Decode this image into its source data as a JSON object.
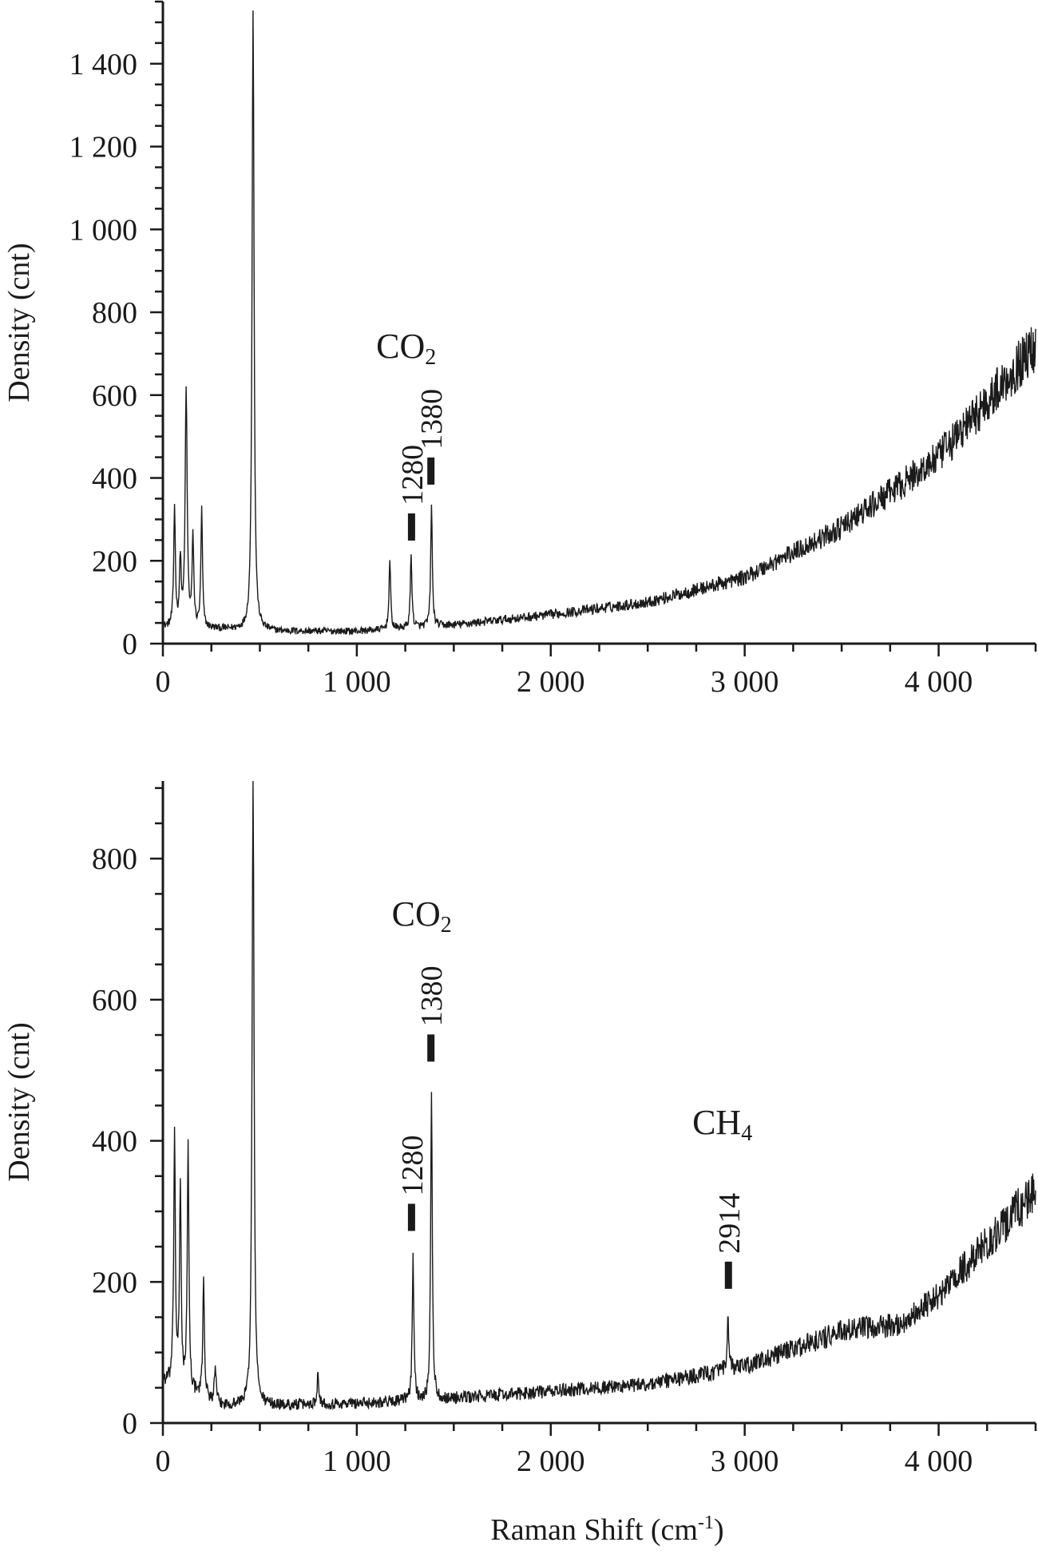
{
  "chart_data": [
    {
      "type": "line",
      "ylabel": "Density (cnt)",
      "xlim": [
        0,
        4500
      ],
      "ylim": [
        0,
        1550
      ],
      "x_ticks": [
        {
          "value": 0,
          "label": "0"
        },
        {
          "value": 1000,
          "label": "1 000"
        },
        {
          "value": 2000,
          "label": "2 000"
        },
        {
          "value": 3000,
          "label": "3 000"
        },
        {
          "value": 4000,
          "label": "4 000"
        }
      ],
      "y_ticks": [
        {
          "value": 0,
          "label": "0"
        },
        {
          "value": 200,
          "label": "200"
        },
        {
          "value": 400,
          "label": "400"
        },
        {
          "value": 600,
          "label": "600"
        },
        {
          "value": 800,
          "label": "800"
        },
        {
          "value": 1000,
          "label": "1 000"
        },
        {
          "value": 1200,
          "label": "1 200"
        },
        {
          "value": 1400,
          "label": "1 400"
        }
      ],
      "annotations": [
        {
          "text": "CO",
          "sub": "2",
          "x": 1100,
          "y": 690
        },
        {
          "text": "1280",
          "x": 1280,
          "y": 245
        },
        {
          "text": "1380",
          "x": 1380,
          "y": 380
        }
      ],
      "peaks": [
        {
          "x": 60,
          "y": 330
        },
        {
          "x": 90,
          "y": 200
        },
        {
          "x": 120,
          "y": 610
        },
        {
          "x": 155,
          "y": 250
        },
        {
          "x": 200,
          "y": 320
        },
        {
          "x": 465,
          "y": 1530
        },
        {
          "x": 1170,
          "y": 200
        },
        {
          "x": 1280,
          "y": 215
        },
        {
          "x": 1385,
          "y": 335
        }
      ],
      "baseline": [
        [
          0,
          40
        ],
        [
          300,
          35
        ],
        [
          600,
          30
        ],
        [
          1000,
          30
        ],
        [
          1500,
          45
        ],
        [
          2000,
          70
        ],
        [
          2500,
          100
        ],
        [
          3000,
          160
        ],
        [
          3500,
          280
        ],
        [
          4000,
          450
        ],
        [
          4500,
          720
        ]
      ]
    },
    {
      "type": "line",
      "xlabel": "Raman Shift (cm",
      "xlabel_sup": "-1",
      "xlabel_end": ")",
      "ylabel": "Density (cnt)",
      "xlim": [
        0,
        4500
      ],
      "ylim": [
        0,
        910
      ],
      "x_ticks": [
        {
          "value": 0,
          "label": "0"
        },
        {
          "value": 1000,
          "label": "1 000"
        },
        {
          "value": 2000,
          "label": "2 000"
        },
        {
          "value": 3000,
          "label": "3 000"
        },
        {
          "value": 4000,
          "label": "4 000"
        }
      ],
      "y_ticks": [
        {
          "value": 0,
          "label": "0"
        },
        {
          "value": 200,
          "label": "200"
        },
        {
          "value": 400,
          "label": "400"
        },
        {
          "value": 600,
          "label": "600"
        },
        {
          "value": 800,
          "label": "800"
        }
      ],
      "annotations": [
        {
          "text": "CO",
          "sub": "2",
          "x": 1180,
          "y": 705
        },
        {
          "text": "CH",
          "sub": "4",
          "x": 2730,
          "y": 410
        },
        {
          "text": "1280",
          "x": 1280,
          "y": 270
        },
        {
          "text": "1380",
          "x": 1380,
          "y": 510
        },
        {
          "text": "2914",
          "x": 2914,
          "y": 188
        }
      ],
      "peaks": [
        {
          "x": 60,
          "y": 410
        },
        {
          "x": 90,
          "y": 330
        },
        {
          "x": 130,
          "y": 390
        },
        {
          "x": 210,
          "y": 205
        },
        {
          "x": 270,
          "y": 80
        },
        {
          "x": 465,
          "y": 910
        },
        {
          "x": 800,
          "y": 75
        },
        {
          "x": 1290,
          "y": 235
        },
        {
          "x": 1385,
          "y": 470
        },
        {
          "x": 2914,
          "y": 145
        }
      ],
      "baseline": [
        [
          0,
          60
        ],
        [
          300,
          25
        ],
        [
          600,
          25
        ],
        [
          1000,
          28
        ],
        [
          1500,
          35
        ],
        [
          2000,
          45
        ],
        [
          2500,
          55
        ],
        [
          3000,
          80
        ],
        [
          3500,
          130
        ],
        [
          3800,
          140
        ],
        [
          4000,
          180
        ],
        [
          4500,
          330
        ]
      ]
    }
  ]
}
